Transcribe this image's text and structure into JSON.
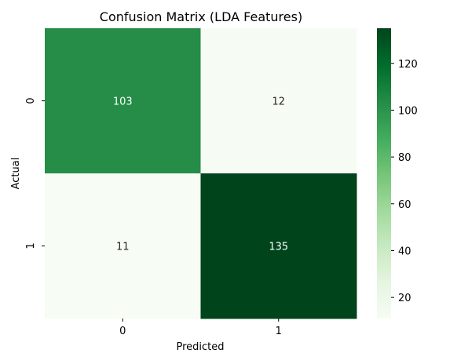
{
  "chart_data": {
    "type": "heatmap",
    "title": "Confusion Matrix (LDA Features)",
    "xlabel": "Predicted",
    "ylabel": "Actual",
    "x_categories": [
      "0",
      "1"
    ],
    "y_categories": [
      "0",
      "1"
    ],
    "values": [
      [
        103,
        12
      ],
      [
        11,
        135
      ]
    ],
    "colormap": "Greens",
    "colorbar": {
      "range": [
        11,
        135
      ],
      "ticks": [
        20,
        40,
        60,
        80,
        100,
        120
      ]
    }
  }
}
